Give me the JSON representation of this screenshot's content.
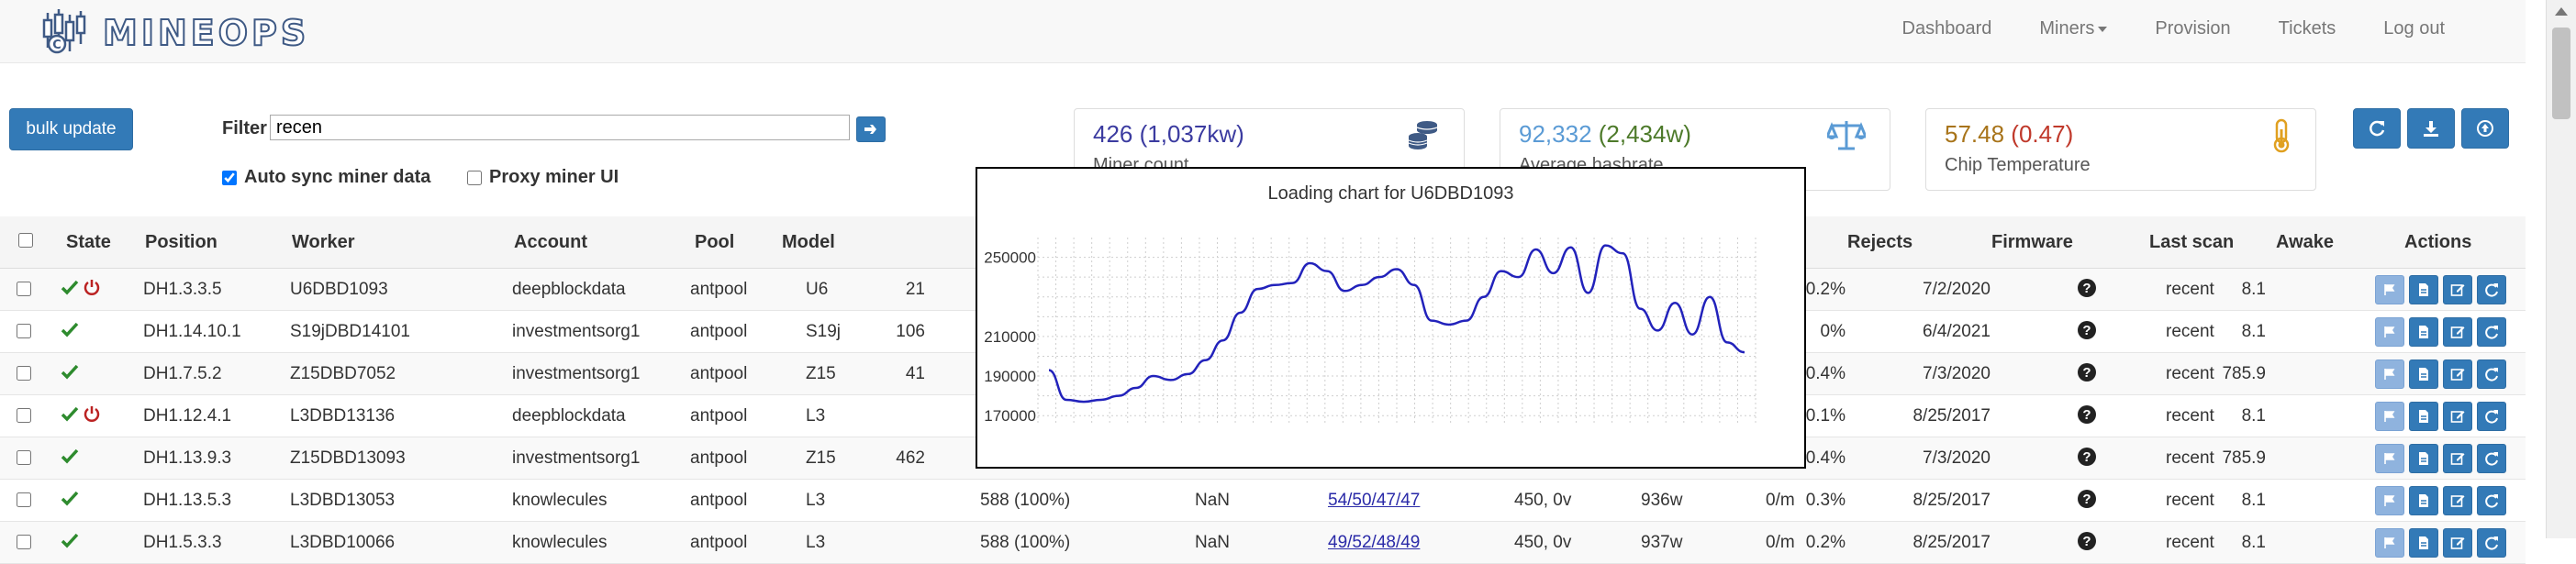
{
  "brand": {
    "name": "MINEOPS"
  },
  "nav": {
    "items": [
      {
        "label": "Dashboard"
      },
      {
        "label": "Miners",
        "dropdown": true
      },
      {
        "label": "Provision"
      },
      {
        "label": "Tickets"
      },
      {
        "label": "Log out"
      }
    ]
  },
  "toolbar": {
    "bulk_label": "bulk update",
    "filter_label": "Filter",
    "filter_value": "recen",
    "auto_sync_label": "Auto sync miner data",
    "auto_sync_checked": true,
    "proxy_label": "Proxy miner UI",
    "proxy_checked": false
  },
  "cards": {
    "miners": {
      "count": "426",
      "power": " (1,037kw)",
      "label": "Miner count",
      "count_color": "#3b3ba0",
      "power_color": "#3b3ba0"
    },
    "hashrate": {
      "value": "92,332",
      "power": " (2,434w)",
      "label": "Average hashrate",
      "value_color": "#5b9bd5",
      "power_color": "#4d7a2a"
    },
    "temp": {
      "value": "57.48",
      "delta": " (0.47)",
      "label": "Chip Temperature",
      "value_color": "#a8741a",
      "delta_color": "#c0392b"
    }
  },
  "table": {
    "headers": {
      "state": "State",
      "position": "Position",
      "worker": "Worker",
      "account": "Account",
      "pool": "Pool",
      "model": "Model",
      "rejects": "Rejects",
      "firmware": "Firmware",
      "last_scan": "Last scan",
      "awake": "Awake",
      "actions": "Actions"
    },
    "rows": [
      {
        "power_icon": true,
        "position": "DH1.3.3.5",
        "worker": "U6DBD1093",
        "account": "deepblockdata",
        "pool": "antpool",
        "model": "U6",
        "hash": "21",
        "rejects": "0.2%",
        "firmware": "7/2/2020",
        "last_scan": "recent",
        "awake": "8.1"
      },
      {
        "power_icon": false,
        "position": "DH1.14.10.1",
        "worker": "S19jDBD14101",
        "account": "investmentsorg1",
        "pool": "antpool",
        "model": "S19j",
        "hash": "106",
        "rejects": "0%",
        "firmware": "6/4/2021",
        "last_scan": "recent",
        "awake": "8.1"
      },
      {
        "power_icon": false,
        "position": "DH1.7.5.2",
        "worker": "Z15DBD7052",
        "account": "investmentsorg1",
        "pool": "antpool",
        "model": "Z15",
        "hash": "41",
        "rejects": "0.4%",
        "firmware": "7/3/2020",
        "last_scan": "recent",
        "awake": "785.9"
      },
      {
        "power_icon": true,
        "position": "DH1.12.4.1",
        "worker": "L3DBD13136",
        "account": "deepblockdata",
        "pool": "antpool",
        "model": "L3",
        "hash": "",
        "rejects": "0.1%",
        "firmware": "8/25/2017",
        "last_scan": "recent",
        "awake": "8.1"
      },
      {
        "power_icon": false,
        "position": "DH1.13.9.3",
        "worker": "Z15DBD13093",
        "account": "investmentsorg1",
        "pool": "antpool",
        "model": "Z15",
        "hash": "462",
        "rejects": "0.4%",
        "firmware": "7/3/2020",
        "last_scan": "recent",
        "awake": "785.9"
      },
      {
        "power_icon": false,
        "position": "DH1.13.5.3",
        "worker": "L3DBD13053",
        "account": "knowlecules",
        "pool": "antpool",
        "model": "L3",
        "hash": "588 (100%)",
        "nan": "NaN",
        "temps": "54/50/47/47",
        "freq": "450, 0v",
        "watts": "936w",
        "rate": "0/m",
        "rejects": "0.3%",
        "firmware": "8/25/2017",
        "last_scan": "recent",
        "awake": "8.1"
      },
      {
        "power_icon": false,
        "position": "DH1.5.3.3",
        "worker": "L3DBD10066",
        "account": "knowlecules",
        "pool": "antpool",
        "model": "L3",
        "hash": "588 (100%)",
        "nan": "NaN",
        "temps": "49/52/48/49",
        "freq": "450, 0v",
        "watts": "937w",
        "rate": "0/m",
        "rejects": "0.2%",
        "firmware": "8/25/2017",
        "last_scan": "recent",
        "awake": "8.1"
      }
    ]
  },
  "popup": {
    "title": "Loading chart for U6DBD1093",
    "chart_data": {
      "type": "line",
      "title": "Loading chart for U6DBD1093",
      "y_ticks": [
        170000,
        190000,
        210000,
        250000
      ],
      "ylim": [
        165000,
        260000
      ],
      "grid": true,
      "series_color": "#2222bb",
      "values": [
        193000,
        178000,
        177000,
        178000,
        180000,
        184000,
        190000,
        188000,
        191000,
        198000,
        208000,
        222000,
        234000,
        236000,
        237000,
        247000,
        243000,
        233000,
        236000,
        240000,
        244000,
        236000,
        218000,
        216000,
        218000,
        230000,
        243000,
        240000,
        254000,
        242000,
        255000,
        232000,
        256000,
        252000,
        224000,
        213000,
        227000,
        211000,
        230000,
        207000,
        202000
      ]
    }
  }
}
